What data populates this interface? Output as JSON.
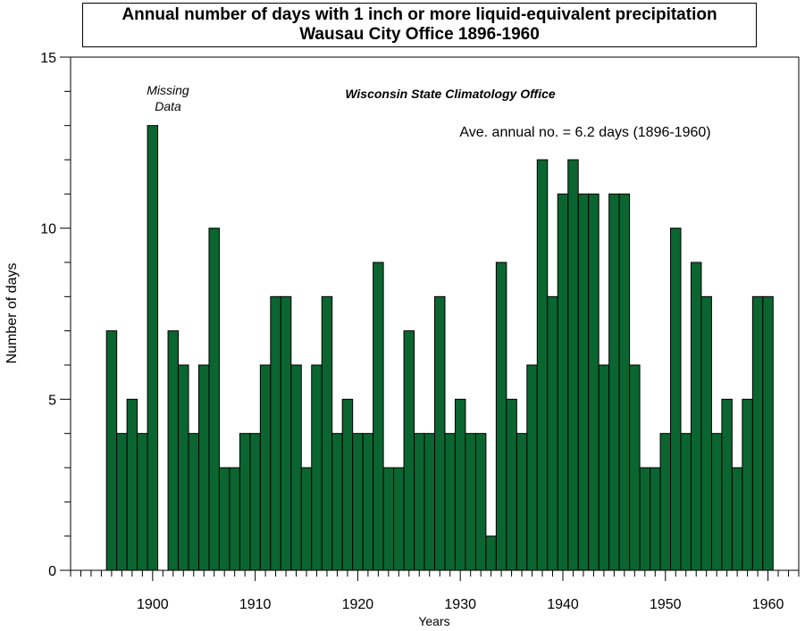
{
  "chart_data": {
    "type": "bar",
    "title": "Annual number of days with 1 inch or more liquid-equivalent precipitation",
    "subtitle": "Wausau City Office 1896-1960",
    "xlabel": "Years",
    "ylabel": "Number of days",
    "xlim": [
      1892,
      1963
    ],
    "ylim": [
      0,
      15
    ],
    "x_ticks": [
      1900,
      1910,
      1920,
      1930,
      1940,
      1950,
      1960
    ],
    "y_ticks": [
      0,
      5,
      10,
      15
    ],
    "grid": false,
    "bar_color": "#0b6530",
    "annotations": {
      "missing_line1": "Missing",
      "missing_line2": "Data",
      "source": "Wisconsin State Climatology Office",
      "average": "Ave. annual no. = 6.2 days (1896-1960)"
    },
    "x": [
      1896,
      1897,
      1898,
      1899,
      1900,
      1902,
      1903,
      1904,
      1905,
      1906,
      1907,
      1908,
      1909,
      1910,
      1911,
      1912,
      1913,
      1914,
      1915,
      1916,
      1917,
      1918,
      1919,
      1920,
      1921,
      1922,
      1923,
      1924,
      1925,
      1926,
      1927,
      1928,
      1929,
      1930,
      1931,
      1932,
      1933,
      1934,
      1935,
      1936,
      1937,
      1938,
      1939,
      1940,
      1941,
      1942,
      1943,
      1944,
      1945,
      1946,
      1947,
      1948,
      1949,
      1950,
      1951,
      1952,
      1953,
      1954,
      1955,
      1956,
      1957,
      1958,
      1959,
      1960
    ],
    "values": [
      7,
      4,
      5,
      4,
      13,
      7,
      6,
      4,
      6,
      10,
      3,
      3,
      4,
      4,
      6,
      8,
      8,
      6,
      3,
      6,
      8,
      4,
      5,
      4,
      4,
      9,
      3,
      3,
      7,
      4,
      4,
      8,
      4,
      5,
      4,
      4,
      1,
      9,
      5,
      4,
      6,
      12,
      8,
      11,
      12,
      11,
      11,
      6,
      11,
      11,
      6,
      3,
      3,
      4,
      10,
      4,
      9,
      8,
      4,
      5,
      3,
      5,
      8,
      8
    ]
  }
}
